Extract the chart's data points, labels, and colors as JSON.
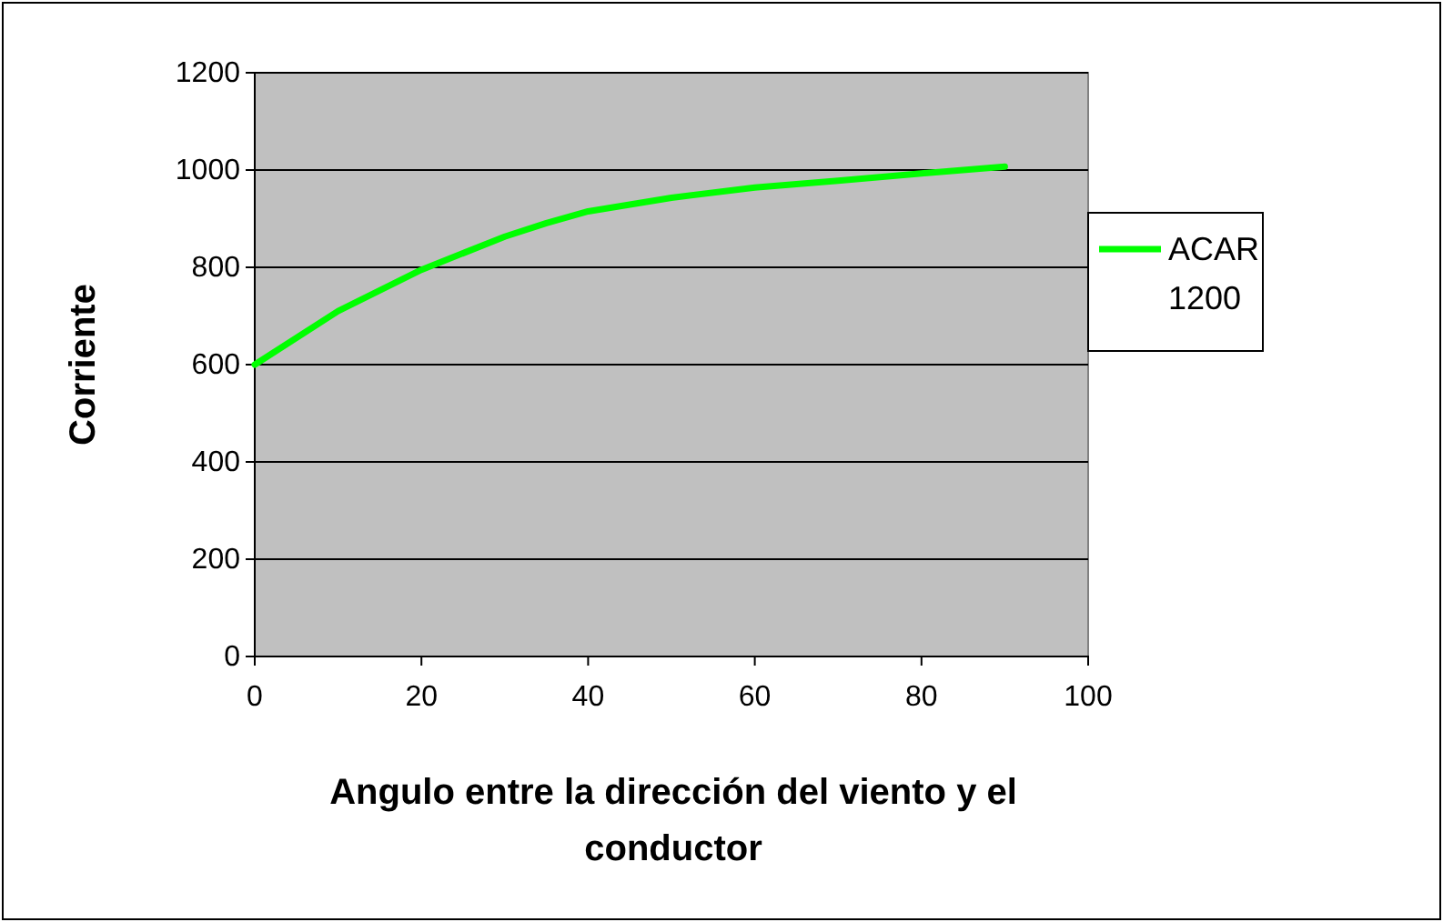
{
  "chart_data": {
    "type": "line",
    "xlabel": "Angulo entre la dirección del viento y el conductor",
    "ylabel": "Corriente",
    "x": [
      0,
      10,
      20,
      30,
      35,
      40,
      50,
      60,
      70,
      80,
      90
    ],
    "series": [
      {
        "name": "ACAR 1200",
        "color": "#00ff00",
        "values": [
          600,
          710,
          795,
          863,
          891,
          915,
          943,
          964,
          978,
          993,
          1007
        ]
      }
    ],
    "xlim": [
      0,
      100
    ],
    "xticks": [
      0,
      20,
      40,
      60,
      80,
      100
    ],
    "ylim": [
      0,
      1200
    ],
    "yticks": [
      0,
      200,
      400,
      600,
      800,
      1000,
      1200
    ],
    "grid": "y",
    "legend": "right",
    "marker": "none",
    "line_style": "solid"
  }
}
